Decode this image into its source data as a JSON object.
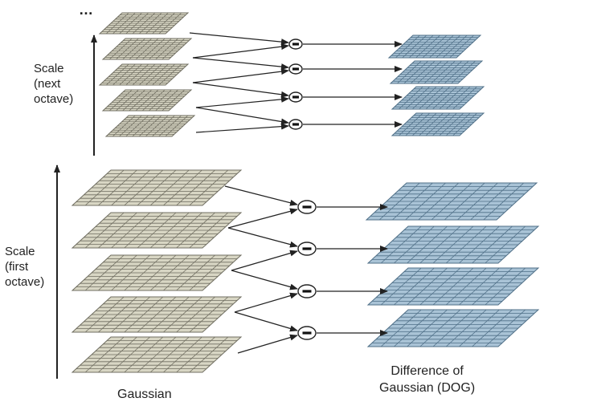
{
  "labels": {
    "ellipsis": "…",
    "scale_next_line1": "Scale",
    "scale_next_line2": "(next",
    "scale_next_line3": "octave)",
    "scale_first_line1": "Scale",
    "scale_first_line2": "(first",
    "scale_first_line3": "octave)",
    "gaussian": "Gaussian",
    "dog_line1": "Difference of",
    "dog_line2": "Gaussian (DOG)",
    "subtract_symbol": "−"
  },
  "colors": {
    "gaussian_fill": "#d8d6c4",
    "gaussian_grid": "#6f6d60",
    "dog_fill": "#a9c3d6",
    "dog_grid": "#4f6f87",
    "arrow": "#222222"
  },
  "structure": {
    "octaves": 2,
    "gaussian_layers_per_octave": 5,
    "dog_layers_per_octave": 4,
    "grid_cells": 10
  }
}
